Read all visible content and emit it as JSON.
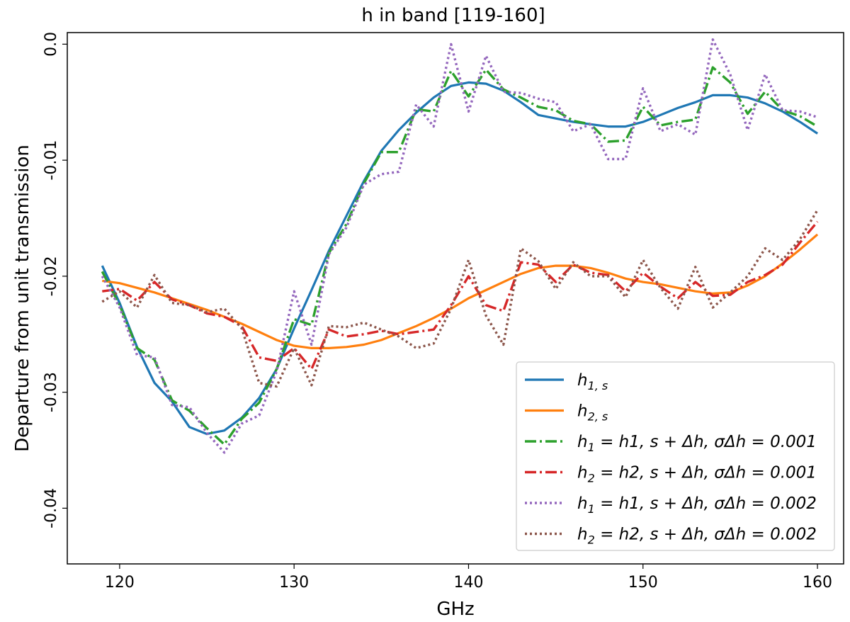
{
  "chart_data": {
    "type": "line",
    "title": "h in band [119-160]",
    "xlabel": "GHz",
    "ylabel": "Departure from unit transmission",
    "xlim": [
      117,
      161.5
    ],
    "ylim": [
      -0.0448,
      0.001
    ],
    "xticks": [
      120,
      130,
      140,
      150,
      160
    ],
    "xtick_labels": [
      "120",
      "130",
      "140",
      "150",
      "160"
    ],
    "yticks": [
      0.0,
      -0.01,
      -0.02,
      -0.03,
      -0.04
    ],
    "ytick_labels": [
      "0.0",
      "-0.01",
      "-0.02",
      "-0.03",
      "-0.04"
    ],
    "grid": false,
    "legend_position": "lower-right",
    "x": [
      119,
      120,
      121,
      122,
      123,
      124,
      125,
      126,
      127,
      128,
      129,
      130,
      131,
      132,
      133,
      134,
      135,
      136,
      137,
      138,
      139,
      140,
      141,
      142,
      143,
      144,
      145,
      146,
      147,
      148,
      149,
      150,
      151,
      152,
      153,
      154,
      155,
      156,
      157,
      158,
      159,
      160
    ],
    "series": [
      {
        "name": "h1,s",
        "color": "#1f77b4",
        "style": "solid",
        "values": [
          -0.0191,
          -0.0223,
          -0.0261,
          -0.0292,
          -0.0308,
          -0.033,
          -0.0336,
          -0.0333,
          -0.0322,
          -0.0305,
          -0.028,
          -0.0245,
          -0.0212,
          -0.0178,
          -0.0148,
          -0.0118,
          -0.0092,
          -0.0074,
          -0.0059,
          -0.0046,
          -0.0036,
          -0.0033,
          -0.0034,
          -0.004,
          -0.005,
          -0.0061,
          -0.0064,
          -0.0067,
          -0.0069,
          -0.0071,
          -0.0071,
          -0.0067,
          -0.0061,
          -0.0055,
          -0.005,
          -0.0044,
          -0.0044,
          -0.0046,
          -0.0051,
          -0.0058,
          -0.0067,
          -0.0077
        ]
      },
      {
        "name": "h2,s",
        "color": "#ff7f0e",
        "style": "solid",
        "values": [
          -0.0204,
          -0.0206,
          -0.021,
          -0.0214,
          -0.0219,
          -0.0224,
          -0.0229,
          -0.0235,
          -0.0241,
          -0.0248,
          -0.0255,
          -0.026,
          -0.0262,
          -0.0262,
          -0.0261,
          -0.0259,
          -0.0255,
          -0.0249,
          -0.0243,
          -0.0236,
          -0.0228,
          -0.0219,
          -0.0212,
          -0.0205,
          -0.0198,
          -0.0193,
          -0.0191,
          -0.0191,
          -0.0193,
          -0.0197,
          -0.0202,
          -0.0205,
          -0.0207,
          -0.021,
          -0.0213,
          -0.0215,
          -0.0214,
          -0.0208,
          -0.02,
          -0.0189,
          -0.0177,
          -0.0164
        ]
      },
      {
        "name": "h1 = h1,s + Δh, σΔh = 0.001",
        "color": "#2ca02c",
        "style": "dashdot",
        "values": [
          -0.0196,
          -0.0225,
          -0.0262,
          -0.0272,
          -0.0307,
          -0.0316,
          -0.0331,
          -0.0345,
          -0.0323,
          -0.0309,
          -0.028,
          -0.0237,
          -0.0242,
          -0.018,
          -0.0155,
          -0.012,
          -0.0093,
          -0.0093,
          -0.0056,
          -0.0058,
          -0.0023,
          -0.0045,
          -0.0022,
          -0.0039,
          -0.0046,
          -0.0054,
          -0.0057,
          -0.0066,
          -0.0069,
          -0.0084,
          -0.0083,
          -0.0054,
          -0.007,
          -0.0067,
          -0.0065,
          -0.002,
          -0.0033,
          -0.006,
          -0.0041,
          -0.0057,
          -0.0062,
          -0.0071
        ]
      },
      {
        "name": "h2 = h2,s + Δh, σΔh = 0.001",
        "color": "#d62728",
        "style": "dashdot",
        "values": [
          -0.0213,
          -0.0211,
          -0.0221,
          -0.0205,
          -0.022,
          -0.0225,
          -0.0232,
          -0.0235,
          -0.0243,
          -0.027,
          -0.0273,
          -0.0262,
          -0.028,
          -0.0246,
          -0.0252,
          -0.025,
          -0.0247,
          -0.025,
          -0.0248,
          -0.0246,
          -0.0225,
          -0.02,
          -0.0225,
          -0.023,
          -0.0188,
          -0.019,
          -0.0205,
          -0.019,
          -0.0197,
          -0.0199,
          -0.0213,
          -0.0197,
          -0.0209,
          -0.0219,
          -0.0205,
          -0.0217,
          -0.0216,
          -0.0205,
          -0.0199,
          -0.019,
          -0.0171,
          -0.0153
        ]
      },
      {
        "name": "h1 = h1,s + Δh, σΔh = 0.002",
        "color": "#9467bd",
        "style": "dotted",
        "values": [
          -0.02,
          -0.0227,
          -0.0268,
          -0.027,
          -0.0311,
          -0.0313,
          -0.0335,
          -0.0352,
          -0.0327,
          -0.032,
          -0.0282,
          -0.0213,
          -0.0259,
          -0.0181,
          -0.0158,
          -0.0121,
          -0.0112,
          -0.011,
          -0.0052,
          -0.0071,
          0.0,
          -0.0058,
          -0.001,
          -0.0041,
          -0.0042,
          -0.0047,
          -0.005,
          -0.0075,
          -0.0069,
          -0.0099,
          -0.0099,
          -0.0038,
          -0.0075,
          -0.0069,
          -0.0078,
          0.0004,
          -0.0026,
          -0.0074,
          -0.0026,
          -0.0057,
          -0.0058,
          -0.0063
        ]
      },
      {
        "name": "h2 = h2,s + Δh, σΔh = 0.002",
        "color": "#8c564b",
        "style": "dotted",
        "values": [
          -0.0222,
          -0.0213,
          -0.0227,
          -0.0199,
          -0.0223,
          -0.0225,
          -0.0231,
          -0.0228,
          -0.0245,
          -0.0292,
          -0.0295,
          -0.0262,
          -0.0294,
          -0.0243,
          -0.0244,
          -0.024,
          -0.0246,
          -0.0252,
          -0.0262,
          -0.0258,
          -0.0228,
          -0.0186,
          -0.0234,
          -0.0259,
          -0.0176,
          -0.0187,
          -0.0211,
          -0.0188,
          -0.02,
          -0.02,
          -0.0218,
          -0.0186,
          -0.021,
          -0.0228,
          -0.0192,
          -0.0227,
          -0.0214,
          -0.02,
          -0.0176,
          -0.0186,
          -0.0168,
          -0.0143
        ]
      }
    ],
    "legend_entries": [
      {
        "base": "h",
        "sub": "1, s",
        "rest": ""
      },
      {
        "base": "h",
        "sub": "2, s",
        "rest": ""
      },
      {
        "base": "h",
        "sub": "1",
        "rest": " = h1, s + Δh, σΔh = 0.001"
      },
      {
        "base": "h",
        "sub": "2",
        "rest": " = h2, s + Δh, σΔh = 0.001"
      },
      {
        "base": "h",
        "sub": "1",
        "rest": " = h1, s + Δh, σΔh = 0.002"
      },
      {
        "base": "h",
        "sub": "2",
        "rest": " = h2, s + Δh, σΔh = 0.002"
      }
    ]
  }
}
